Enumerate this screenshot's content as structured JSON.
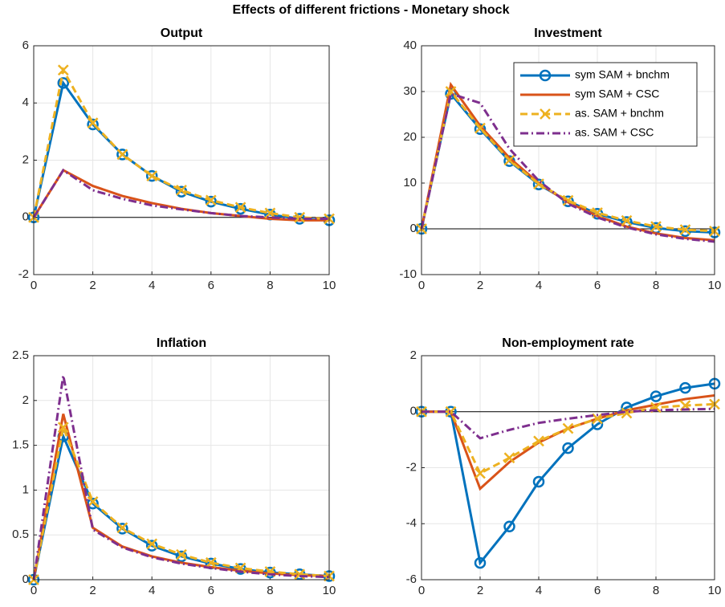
{
  "title": "Effects of different frictions - Monetary shock",
  "chart_data": [
    {
      "type": "line",
      "title": "Output",
      "x": [
        0,
        1,
        2,
        3,
        4,
        5,
        6,
        7,
        8,
        9,
        10
      ],
      "xlim": [
        0,
        10
      ],
      "xticks": [
        0,
        2,
        4,
        6,
        8,
        10
      ],
      "ylim": [
        -2,
        6
      ],
      "yticks": [
        -2,
        0,
        2,
        4,
        6
      ],
      "grid": true,
      "series": [
        {
          "color": "#0072bd",
          "line": "solid",
          "marker": "o",
          "values": [
            0,
            4.7,
            3.25,
            2.2,
            1.45,
            0.9,
            0.55,
            0.3,
            0.1,
            -0.05,
            -0.1
          ]
        },
        {
          "color": "#d95319",
          "line": "solid",
          "values": [
            0,
            1.65,
            1.1,
            0.75,
            0.5,
            0.3,
            0.15,
            0.05,
            -0.05,
            -0.1,
            -0.1
          ]
        },
        {
          "color": "#edb120",
          "line": "dashed",
          "marker": "x",
          "values": [
            0,
            5.15,
            3.3,
            2.2,
            1.45,
            0.95,
            0.6,
            0.35,
            0.15,
            0,
            -0.05
          ]
        },
        {
          "color": "#7e2f8e",
          "line": "dashdot",
          "values": [
            0,
            1.65,
            0.95,
            0.65,
            0.42,
            0.28,
            0.15,
            0.05,
            0,
            -0.05,
            -0.05
          ]
        }
      ]
    },
    {
      "type": "line",
      "title": "Investment",
      "x": [
        0,
        1,
        2,
        3,
        4,
        5,
        6,
        7,
        8,
        9,
        10
      ],
      "xlim": [
        0,
        10
      ],
      "xticks": [
        0,
        2,
        4,
        6,
        8,
        10
      ],
      "ylim": [
        -10,
        40
      ],
      "yticks": [
        -10,
        0,
        10,
        20,
        30,
        40
      ],
      "grid": true,
      "legend": "northeast",
      "series": [
        {
          "name": "sym SAM + bnchm",
          "color": "#0072bd",
          "line": "solid",
          "marker": "o",
          "values": [
            0,
            29.5,
            21.8,
            14.8,
            9.7,
            6,
            3.3,
            1.5,
            0.2,
            -0.5,
            -0.8
          ]
        },
        {
          "name": "sym SAM + CSC",
          "color": "#d95319",
          "line": "solid",
          "values": [
            0,
            31.5,
            22.5,
            15.5,
            10,
            5.8,
            2.8,
            0.5,
            -1,
            -2,
            -2.5
          ]
        },
        {
          "name": "as. SAM + bnchm",
          "color": "#edb120",
          "line": "dashed",
          "marker": "x",
          "values": [
            0,
            30,
            22,
            15,
            9.8,
            6.2,
            3.5,
            1.8,
            0.5,
            -0.2,
            -0.5
          ]
        },
        {
          "name": "as. SAM + CSC",
          "color": "#7e2f8e",
          "line": "dashdot",
          "values": [
            0,
            29.5,
            27.5,
            17.5,
            10.5,
            5.5,
            2.5,
            0.3,
            -1.2,
            -2.2,
            -2.8
          ]
        }
      ]
    },
    {
      "type": "line",
      "title": "Inflation",
      "x": [
        0,
        1,
        2,
        3,
        4,
        5,
        6,
        7,
        8,
        9,
        10
      ],
      "xlim": [
        0,
        10
      ],
      "xticks": [
        0,
        2,
        4,
        6,
        8,
        10
      ],
      "ylim": [
        0,
        2.5
      ],
      "yticks": [
        0,
        0.5,
        1,
        1.5,
        2,
        2.5
      ],
      "grid": true,
      "series": [
        {
          "color": "#0072bd",
          "line": "solid",
          "marker": "o",
          "values": [
            0,
            1.6,
            0.85,
            0.57,
            0.38,
            0.26,
            0.18,
            0.12,
            0.08,
            0.06,
            0.04
          ]
        },
        {
          "color": "#d95319",
          "line": "solid",
          "values": [
            0,
            1.85,
            0.58,
            0.37,
            0.26,
            0.19,
            0.14,
            0.1,
            0.07,
            0.05,
            0.04
          ]
        },
        {
          "color": "#edb120",
          "line": "dashed",
          "marker": "x",
          "values": [
            0,
            1.7,
            0.87,
            0.58,
            0.4,
            0.28,
            0.19,
            0.13,
            0.09,
            0.06,
            0.04
          ]
        },
        {
          "color": "#7e2f8e",
          "line": "dashdot",
          "values": [
            0,
            2.28,
            0.56,
            0.36,
            0.25,
            0.18,
            0.13,
            0.09,
            0.06,
            0.04,
            0.03
          ]
        }
      ]
    },
    {
      "type": "line",
      "title": "Non-employment rate",
      "x": [
        0,
        1,
        2,
        3,
        4,
        5,
        6,
        7,
        8,
        9,
        10
      ],
      "xlim": [
        0,
        10
      ],
      "xticks": [
        0,
        2,
        4,
        6,
        8,
        10
      ],
      "ylim": [
        -6,
        2
      ],
      "yticks": [
        -6,
        -4,
        -2,
        0,
        2
      ],
      "grid": true,
      "series": [
        {
          "color": "#0072bd",
          "line": "solid",
          "marker": "o",
          "values": [
            0,
            0,
            -5.4,
            -4.1,
            -2.5,
            -1.3,
            -0.45,
            0.15,
            0.55,
            0.85,
            1
          ]
        },
        {
          "color": "#d95319",
          "line": "solid",
          "values": [
            0,
            0,
            -2.75,
            -1.8,
            -1.1,
            -0.6,
            -0.25,
            0.05,
            0.25,
            0.45,
            0.58
          ]
        },
        {
          "color": "#edb120",
          "line": "dashed",
          "marker": "x",
          "values": [
            0,
            0,
            -2.2,
            -1.65,
            -1.05,
            -0.6,
            -0.25,
            -0.05,
            0.15,
            0.22,
            0.27
          ]
        },
        {
          "color": "#7e2f8e",
          "line": "dashdot",
          "values": [
            0,
            0,
            -0.95,
            -0.65,
            -0.4,
            -0.25,
            -0.12,
            0,
            0.05,
            0.08,
            0.1
          ]
        }
      ]
    }
  ]
}
